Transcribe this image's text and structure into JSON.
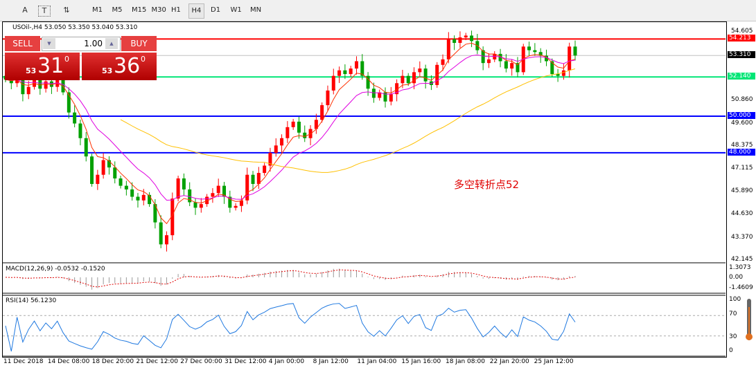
{
  "toolbar": {
    "tools": [
      "A",
      "T",
      "⇅"
    ],
    "timeframes": [
      "M1",
      "M5",
      "M15",
      "M30",
      "H1",
      "H4",
      "D1",
      "W1",
      "MN"
    ],
    "active": "H4"
  },
  "header": {
    "symbol_line": "USOil-,H4  53.050 53.350 53.040 53.310"
  },
  "trade_panel": {
    "sell_label": "SELL",
    "buy_label": "BUY",
    "lot": "1.00",
    "sell_big": "31",
    "sell_small": "53",
    "sell_sup": "0",
    "buy_big": "36",
    "buy_small": "53",
    "buy_sup": "0"
  },
  "price_axis": [
    "54.605",
    "50.860",
    "49.600",
    "48.375",
    "47.115",
    "45.890",
    "44.630",
    "43.370",
    "42.145"
  ],
  "levels": [
    {
      "value": "54.213",
      "color": "#ff0000"
    },
    {
      "value": "53.310",
      "color": "#000000",
      "line": "#c0c0c0"
    },
    {
      "value": "52.140",
      "color": "#00e676"
    },
    {
      "value": "50.000",
      "color": "#0000ff"
    },
    {
      "value": "48.000",
      "color": "#0000ff"
    }
  ],
  "annotation": "多空转折点52",
  "macd": {
    "label": "MACD(12,26,9) -0.0532 -0.1520",
    "axis": [
      "1.3073",
      "0.00",
      "-1.4609"
    ]
  },
  "rsi": {
    "label": "RSI(14) 56.1230",
    "axis": [
      "100",
      "70",
      "30",
      "0"
    ]
  },
  "time_axis": [
    "11 Dec 2018",
    "14 Dec 08:00",
    "18 Dec 20:00",
    "21 Dec 12:00",
    "27 Dec 00:00",
    "31 Dec 12:00",
    "4 Jan 00:00",
    "8 Jan 12:00",
    "11 Jan 04:00",
    "15 Jan 16:00",
    "18 Jan 08:00",
    "22 Jan 20:00",
    "25 Jan 12:00"
  ],
  "chart_data": {
    "type": "candlestick",
    "bull_color": "#ff0000",
    "bear_color": "#00a000",
    "ylim": [
      42.145,
      54.605
    ],
    "closes": [
      52.0,
      51.8,
      52.1,
      51.2,
      51.6,
      52.0,
      51.5,
      51.9,
      51.6,
      52.0,
      51.3,
      50.2,
      49.6,
      48.8,
      47.8,
      46.3,
      46.8,
      47.6,
      47.2,
      46.6,
      46.2,
      46.0,
      45.6,
      45.4,
      45.7,
      45.2,
      44.2,
      43.0,
      43.5,
      45.5,
      46.6,
      46.0,
      45.3,
      45.0,
      45.2,
      45.6,
      45.8,
      46.2,
      45.6,
      45.0,
      45.1,
      45.4,
      46.8,
      46.3,
      46.9,
      47.3,
      48.0,
      48.4,
      48.8,
      49.4,
      49.7,
      49.1,
      48.8,
      49.3,
      49.8,
      50.6,
      51.4,
      52.2,
      52.5,
      52.3,
      52.6,
      53.0,
      52.2,
      51.5,
      51.0,
      51.3,
      50.8,
      51.2,
      51.8,
      52.2,
      51.8,
      52.4,
      52.6,
      51.9,
      51.7,
      52.8,
      53.1,
      54.2,
      54.0,
      54.3,
      54.4,
      54.1,
      53.6,
      52.9,
      53.1,
      53.4,
      53.0,
      52.6,
      52.9,
      52.4,
      53.8,
      53.6,
      53.5,
      53.3,
      53.0,
      52.3,
      52.2,
      52.5,
      53.8,
      53.31
    ]
  }
}
